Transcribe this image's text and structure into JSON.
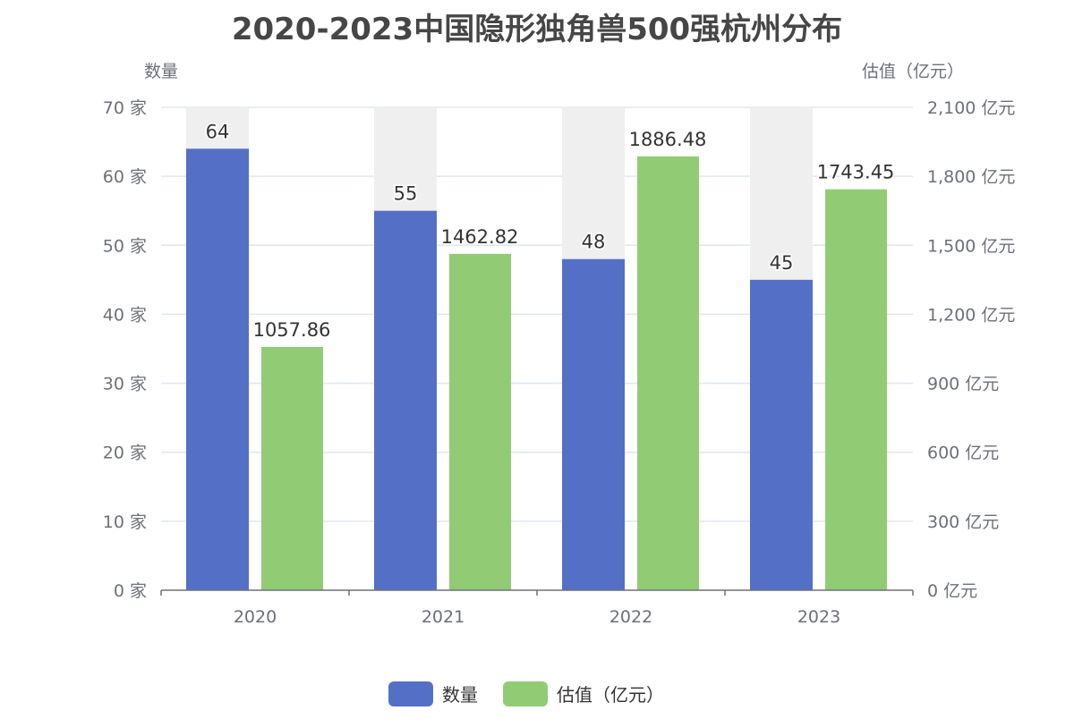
{
  "chart_data": {
    "type": "bar",
    "title": "2020-2023中国隐形独角兽500强杭州分布",
    "categories": [
      "2020",
      "2021",
      "2022",
      "2023"
    ],
    "series": [
      {
        "name": "数量",
        "axis": "left",
        "values": [
          64,
          55,
          48,
          45
        ],
        "color": "#5470c6",
        "labels": [
          "64",
          "55",
          "48",
          "45"
        ]
      },
      {
        "name": "估值（亿元）",
        "axis": "right",
        "values": [
          1057.86,
          1462.82,
          1886.48,
          1743.45
        ],
        "color": "#91cc75",
        "labels": [
          "1057.86",
          "1462.82",
          "1886.48",
          "1743.45"
        ]
      }
    ],
    "y_left": {
      "name": "数量",
      "min": 0,
      "max": 70,
      "ticks": [
        "0 家",
        "10 家",
        "20 家",
        "30 家",
        "40 家",
        "50 家",
        "60 家",
        "70 家"
      ]
    },
    "y_right": {
      "name": "估值（亿元）",
      "min": 0,
      "max": 2100,
      "ticks": [
        "0 亿元",
        "300 亿元",
        "600 亿元",
        "900 亿元",
        "1,200 亿元",
        "1,500 亿元",
        "1,800 亿元",
        "2,100 亿元"
      ]
    },
    "background_bar_color": "#efefef",
    "grid": true,
    "legend": "bottom-center"
  }
}
